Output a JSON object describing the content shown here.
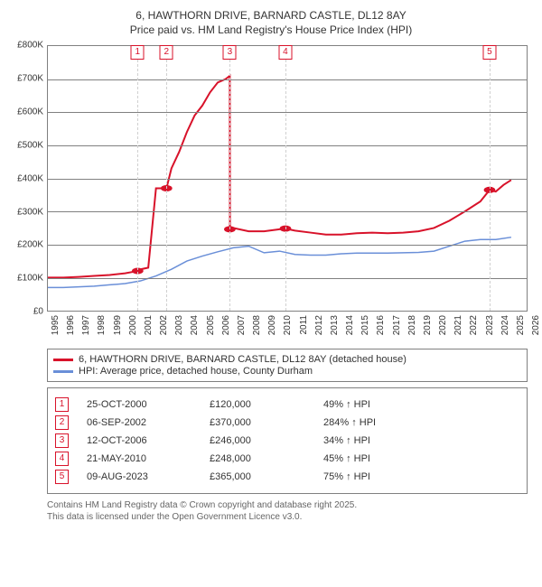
{
  "title": {
    "address": "6, HAWTHORN DRIVE, BARNARD CASTLE, DL12 8AY",
    "subtitle": "Price paid vs. HM Land Registry's House Price Index (HPI)"
  },
  "chart": {
    "type": "line",
    "background_color": "#ffffff",
    "grid_color": "#808080",
    "ylim": [
      0,
      800000
    ],
    "yticks": [
      0,
      100000,
      200000,
      300000,
      400000,
      500000,
      600000,
      700000,
      800000
    ],
    "ytick_labels": [
      "£0",
      "£100K",
      "£200K",
      "£300K",
      "£400K",
      "£500K",
      "£600K",
      "£700K",
      "£800K"
    ],
    "xlim": [
      1995,
      2026
    ],
    "xticks": [
      1995,
      1996,
      1997,
      1998,
      1999,
      2000,
      2001,
      2002,
      2003,
      2004,
      2005,
      2006,
      2007,
      2008,
      2009,
      2010,
      2011,
      2012,
      2013,
      2014,
      2015,
      2016,
      2017,
      2018,
      2019,
      2020,
      2021,
      2022,
      2023,
      2024,
      2025,
      2026
    ],
    "label_fontsize": 10,
    "series": {
      "property": {
        "color": "#d8122a",
        "width": 2,
        "points": [
          [
            1995,
            100000
          ],
          [
            1996,
            100000
          ],
          [
            1997,
            102000
          ],
          [
            1998,
            105000
          ],
          [
            1999,
            108000
          ],
          [
            2000,
            113000
          ],
          [
            2000.81,
            120000
          ],
          [
            2001,
            125000
          ],
          [
            2001.5,
            130000
          ],
          [
            2002,
            370000
          ],
          [
            2002.68,
            370000
          ],
          [
            2003,
            430000
          ],
          [
            2003.5,
            480000
          ],
          [
            2004,
            540000
          ],
          [
            2004.5,
            590000
          ],
          [
            2005,
            620000
          ],
          [
            2005.5,
            660000
          ],
          [
            2006,
            690000
          ],
          [
            2006.5,
            700000
          ],
          [
            2006.78,
            710000
          ],
          [
            2006.79,
            246000
          ],
          [
            2007,
            250000
          ],
          [
            2008,
            240000
          ],
          [
            2009,
            240000
          ],
          [
            2010,
            246000
          ],
          [
            2010.38,
            248000
          ],
          [
            2011,
            242000
          ],
          [
            2012,
            236000
          ],
          [
            2013,
            230000
          ],
          [
            2014,
            230000
          ],
          [
            2015,
            234000
          ],
          [
            2016,
            236000
          ],
          [
            2017,
            234000
          ],
          [
            2018,
            236000
          ],
          [
            2019,
            240000
          ],
          [
            2020,
            250000
          ],
          [
            2021,
            272000
          ],
          [
            2022,
            300000
          ],
          [
            2023,
            330000
          ],
          [
            2023.6,
            365000
          ],
          [
            2024,
            360000
          ],
          [
            2024.5,
            380000
          ],
          [
            2025,
            395000
          ]
        ],
        "marker_points": [
          [
            2000.81,
            120000
          ],
          [
            2002.68,
            370000
          ],
          [
            2006.78,
            246000
          ],
          [
            2010.38,
            248000
          ],
          [
            2023.6,
            365000
          ]
        ]
      },
      "hpi": {
        "color": "#6a8fd8",
        "width": 1.5,
        "points": [
          [
            1995,
            70000
          ],
          [
            1996,
            70000
          ],
          [
            1997,
            72000
          ],
          [
            1998,
            74000
          ],
          [
            1999,
            78000
          ],
          [
            2000,
            82000
          ],
          [
            2001,
            90000
          ],
          [
            2002,
            105000
          ],
          [
            2003,
            125000
          ],
          [
            2004,
            150000
          ],
          [
            2005,
            165000
          ],
          [
            2006,
            178000
          ],
          [
            2007,
            190000
          ],
          [
            2008,
            195000
          ],
          [
            2009,
            175000
          ],
          [
            2010,
            180000
          ],
          [
            2011,
            170000
          ],
          [
            2012,
            168000
          ],
          [
            2013,
            168000
          ],
          [
            2014,
            172000
          ],
          [
            2015,
            174000
          ],
          [
            2016,
            174000
          ],
          [
            2017,
            174000
          ],
          [
            2018,
            175000
          ],
          [
            2019,
            176000
          ],
          [
            2020,
            180000
          ],
          [
            2021,
            195000
          ],
          [
            2022,
            210000
          ],
          [
            2023,
            215000
          ],
          [
            2024,
            215000
          ],
          [
            2025,
            222000
          ]
        ]
      }
    },
    "sale_markers": [
      {
        "n": "1",
        "x": 2000.81
      },
      {
        "n": "2",
        "x": 2002.68
      },
      {
        "n": "3",
        "x": 2006.78
      },
      {
        "n": "4",
        "x": 2010.38
      },
      {
        "n": "5",
        "x": 2023.6
      }
    ]
  },
  "legend": {
    "property": {
      "color": "#d8122a",
      "label": "6, HAWTHORN DRIVE, BARNARD CASTLE, DL12 8AY (detached house)"
    },
    "hpi": {
      "color": "#6a8fd8",
      "label": "HPI: Average price, detached house, County Durham"
    }
  },
  "trades": [
    {
      "n": "1",
      "date": "25-OCT-2000",
      "price": "£120,000",
      "pct": "49% ↑ HPI"
    },
    {
      "n": "2",
      "date": "06-SEP-2002",
      "price": "£370,000",
      "pct": "284% ↑ HPI"
    },
    {
      "n": "3",
      "date": "12-OCT-2006",
      "price": "£246,000",
      "pct": "34% ↑ HPI"
    },
    {
      "n": "4",
      "date": "21-MAY-2010",
      "price": "£248,000",
      "pct": "45% ↑ HPI"
    },
    {
      "n": "5",
      "date": "09-AUG-2023",
      "price": "£365,000",
      "pct": "75% ↑ HPI"
    }
  ],
  "footnote": {
    "line1": "Contains HM Land Registry data © Crown copyright and database right 2025.",
    "line2": "This data is licensed under the Open Government Licence v3.0."
  }
}
